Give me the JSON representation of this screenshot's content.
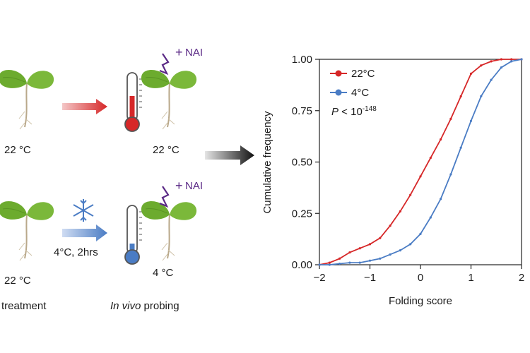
{
  "left_panel": {
    "top_row": {
      "start_temp": "22 °C",
      "probe_temp": "22 °C",
      "reagent": "NAI"
    },
    "bottom_row": {
      "start_temp": "22 °C",
      "treatment_text": "4°C, 2hrs",
      "probe_temp": "4 °C",
      "reagent": "NAI"
    },
    "footer": {
      "treatment": "treatment",
      "probing_italic": "In vivo",
      "probing_rest": " probing"
    },
    "colors": {
      "warm": "#d62728",
      "cold": "#4a7cc4",
      "leaf": "#6cab2e",
      "nai": "#5b2a86"
    }
  },
  "chart_data": {
    "type": "line",
    "xlabel": "Folding score",
    "ylabel": "Cumulative frequency",
    "xlim": [
      -2,
      2
    ],
    "ylim": [
      0,
      1
    ],
    "xticks": [
      "−2",
      "−1",
      "0",
      "1",
      "2"
    ],
    "yticks": [
      "0.00",
      "0.25",
      "0.50",
      "0.75",
      "1.00"
    ],
    "annotation": {
      "p": "P",
      "text": " < 10",
      "exp": "-148"
    },
    "legend_position": "top-left",
    "series": [
      {
        "name": "22°C",
        "color": "#d62728",
        "x": [
          -2.0,
          -1.8,
          -1.6,
          -1.4,
          -1.2,
          -1.0,
          -0.8,
          -0.6,
          -0.4,
          -0.2,
          0.0,
          0.2,
          0.4,
          0.6,
          0.8,
          1.0,
          1.2,
          1.4,
          1.6,
          1.8,
          2.0
        ],
        "y": [
          0.0,
          0.01,
          0.03,
          0.06,
          0.08,
          0.1,
          0.13,
          0.19,
          0.26,
          0.34,
          0.43,
          0.52,
          0.61,
          0.71,
          0.82,
          0.93,
          0.97,
          0.99,
          1.0,
          1.0,
          1.0
        ]
      },
      {
        "name": "4°C",
        "color": "#4a7cc4",
        "x": [
          -2.0,
          -1.8,
          -1.6,
          -1.4,
          -1.2,
          -1.0,
          -0.8,
          -0.6,
          -0.4,
          -0.2,
          0.0,
          0.2,
          0.4,
          0.6,
          0.8,
          1.0,
          1.2,
          1.4,
          1.6,
          1.8,
          2.0
        ],
        "y": [
          0.0,
          0.0,
          0.005,
          0.01,
          0.01,
          0.02,
          0.03,
          0.05,
          0.07,
          0.1,
          0.15,
          0.23,
          0.32,
          0.44,
          0.57,
          0.7,
          0.82,
          0.9,
          0.96,
          0.99,
          1.0
        ]
      }
    ]
  }
}
